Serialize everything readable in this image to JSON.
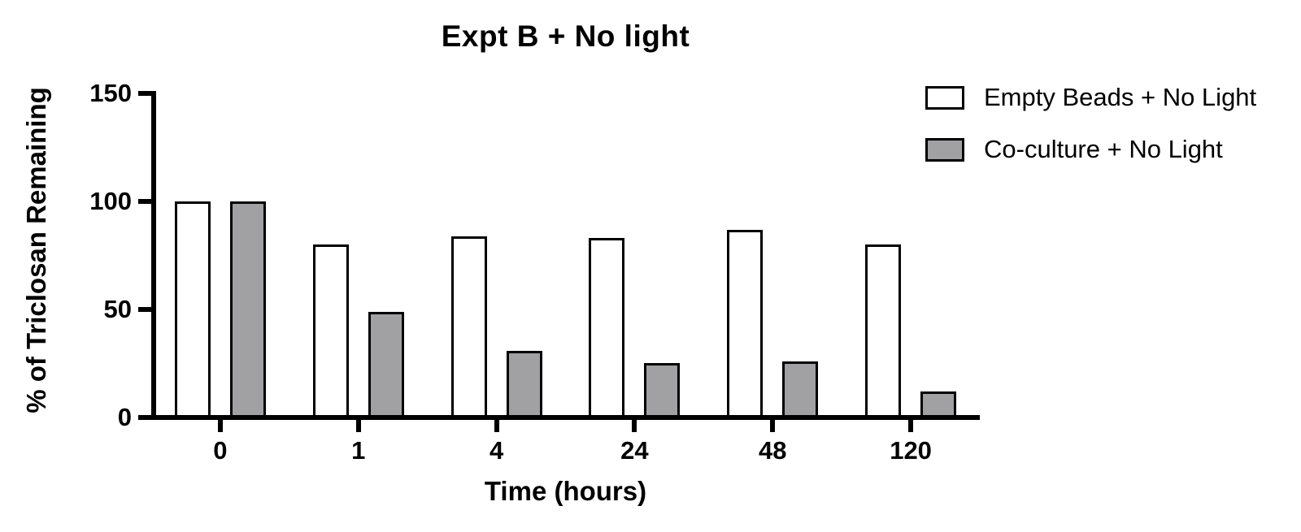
{
  "chart_data": {
    "type": "bar",
    "title": "Expt B + No light",
    "xlabel": "Time (hours)",
    "ylabel": "% of Triclosan Remaining",
    "categories": [
      "0",
      "1",
      "4",
      "24",
      "48",
      "120"
    ],
    "series": [
      {
        "name": "Empty Beads + No Light",
        "fill": "#ffffff",
        "values": [
          100,
          80,
          84,
          83,
          87,
          80
        ]
      },
      {
        "name": "Co-culture + No Light",
        "fill": "#a1a1a3",
        "values": [
          100,
          49,
          31,
          25,
          26,
          12
        ]
      }
    ],
    "ylim": [
      0,
      150
    ],
    "yticks": [
      0,
      50,
      100,
      150
    ],
    "grid": false,
    "legend_position": "top-right",
    "axis_color": "#000000",
    "bar_border_color": "#000000",
    "background_color": "#ffffff"
  }
}
